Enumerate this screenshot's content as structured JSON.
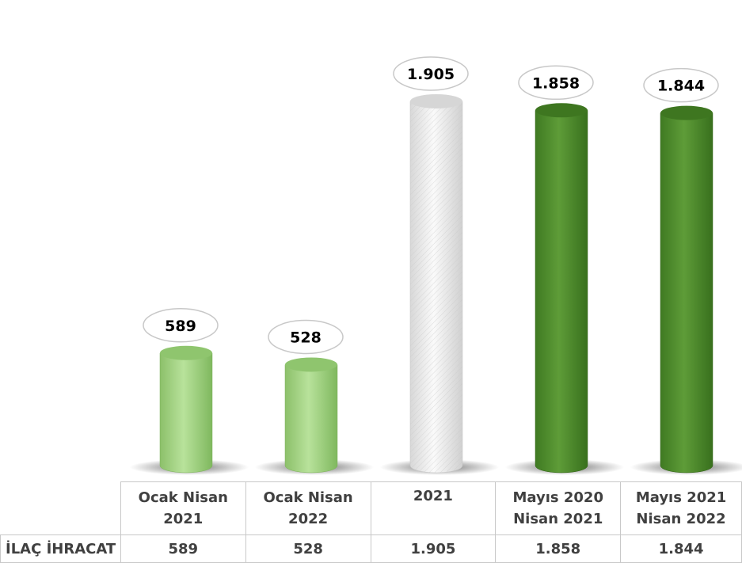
{
  "chart_data": {
    "type": "bar",
    "categories": [
      [
        "Ocak Nisan",
        "2021"
      ],
      [
        "Ocak Nisan",
        "2022"
      ],
      [
        "2021"
      ],
      [
        "Mayıs 2020",
        "Nisan 2021"
      ],
      [
        "Mayıs 2021",
        "Nisan 2022"
      ]
    ],
    "series": [
      {
        "name": "İLAÇ İHRACAT",
        "values": [
          589,
          528,
          1905,
          1858,
          1844
        ],
        "labels": [
          "589",
          "528",
          "1.905",
          "1.858",
          "1.844"
        ],
        "colors": [
          "#a6d586",
          "#a6d586",
          "#f2f2f2",
          "#4e8b2c",
          "#4e8b2c"
        ]
      }
    ],
    "ylim": [
      0,
      2000
    ],
    "grid": false,
    "legend": "none"
  },
  "table": {
    "row_header": "İLAÇ İHRACAT"
  }
}
